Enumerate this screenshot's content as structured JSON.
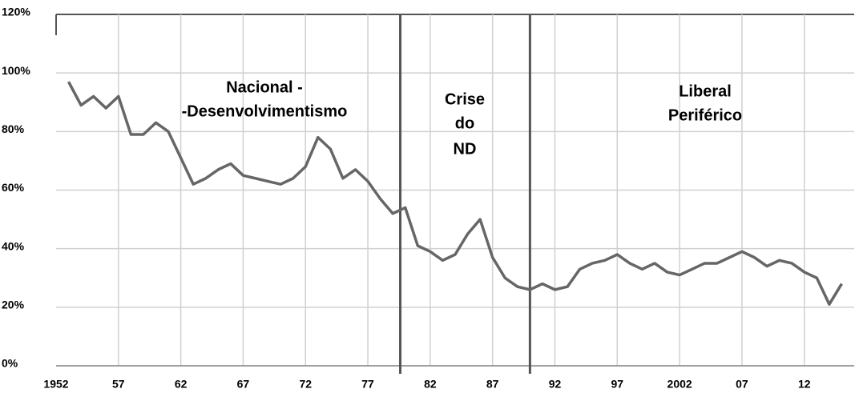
{
  "chart_data": {
    "type": "line",
    "x": [
      1953,
      1954,
      1955,
      1956,
      1957,
      1958,
      1959,
      1960,
      1961,
      1962,
      1963,
      1964,
      1965,
      1966,
      1967,
      1968,
      1969,
      1970,
      1971,
      1972,
      1973,
      1974,
      1975,
      1976,
      1977,
      1978,
      1979,
      1980,
      1981,
      1982,
      1983,
      1984,
      1985,
      1986,
      1987,
      1988,
      1989,
      1990,
      1991,
      1992,
      1993,
      1994,
      1995,
      1996,
      1997,
      1998,
      1999,
      2000,
      2001,
      2002,
      2003,
      2004,
      2005,
      2006,
      2007,
      2008,
      2009,
      2010,
      2011,
      2012,
      2013,
      2014,
      2015
    ],
    "series": [
      {
        "color": "#666666",
        "values": [
          97,
          89,
          92,
          88,
          92,
          79,
          79,
          83,
          80,
          71,
          62,
          64,
          67,
          69,
          65,
          64,
          63,
          62,
          64,
          68,
          78,
          74,
          64,
          67,
          63,
          57,
          52,
          54,
          41,
          39,
          36,
          38,
          45,
          50,
          37,
          30,
          27,
          26,
          28,
          26,
          27,
          33,
          35,
          36,
          38,
          35,
          33,
          35,
          32,
          31,
          33,
          35,
          35,
          37,
          39,
          37,
          34,
          36,
          35,
          32,
          30,
          21,
          28
        ]
      }
    ],
    "xlim": [
      1952,
      2016
    ],
    "ylim": [
      0,
      120
    ],
    "xticks": [
      1952,
      {
        "value": 1957,
        "label": "57"
      },
      {
        "value": 1962,
        "label": "62"
      },
      {
        "value": 1967,
        "label": "67"
      },
      {
        "value": 1972,
        "label": "72"
      },
      {
        "value": 1977,
        "label": "77"
      },
      {
        "value": 1982,
        "label": "82"
      },
      {
        "value": 1987,
        "label": "87"
      },
      {
        "value": 1992,
        "label": "92"
      },
      {
        "value": 1997,
        "label": "97"
      },
      2002,
      {
        "value": 2007,
        "label": "07"
      },
      {
        "value": 2012,
        "label": "12"
      }
    ],
    "yticks": [
      {
        "value": 0,
        "label": "0%"
      },
      {
        "value": 20,
        "label": "20%"
      },
      {
        "value": 40,
        "label": "40%"
      },
      {
        "value": 60,
        "label": "60%"
      },
      {
        "value": 80,
        "label": "80%"
      },
      {
        "value": 100,
        "label": "100%"
      },
      {
        "value": 120,
        "label": "120%"
      }
    ],
    "grid": true,
    "vlines": [
      1979.6,
      1990
    ],
    "annotations": [
      "Nacional -",
      "-Desenvolvimentismo",
      "Crise",
      "do",
      "ND",
      "Liberal",
      "Periférico"
    ]
  }
}
